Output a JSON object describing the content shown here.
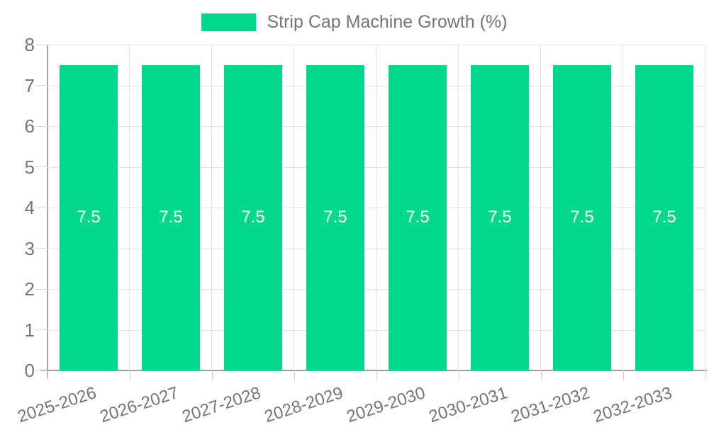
{
  "legend": {
    "label": "Strip Cap Machine Growth (%)"
  },
  "chart_data": {
    "type": "bar",
    "title": "Strip Cap Machine Growth (%)",
    "categories": [
      "2025-2026",
      "2026-2027",
      "2027-2028",
      "2028-2029",
      "2029-2030",
      "2030-2031",
      "2031-2032",
      "2032-2033"
    ],
    "values": [
      7.5,
      7.5,
      7.5,
      7.5,
      7.5,
      7.5,
      7.5,
      7.5
    ],
    "bar_labels": [
      "7.5",
      "7.5",
      "7.5",
      "7.5",
      "7.5",
      "7.5",
      "7.5",
      "7.5"
    ],
    "xlabel": "",
    "ylabel": "",
    "ylim": [
      0,
      8
    ],
    "yticks": [
      0,
      1,
      2,
      3,
      4,
      5,
      6,
      7,
      8
    ],
    "grid": true,
    "legend_position": "top",
    "x_label_rotation_deg": -18,
    "colors": {
      "bar": "#00d98c",
      "bar_label": "#ffffff",
      "axis_text": "#757575",
      "grid_line": "#e2e2e2",
      "axis_line": "#9e9e9e",
      "background": "#ffffff"
    }
  }
}
